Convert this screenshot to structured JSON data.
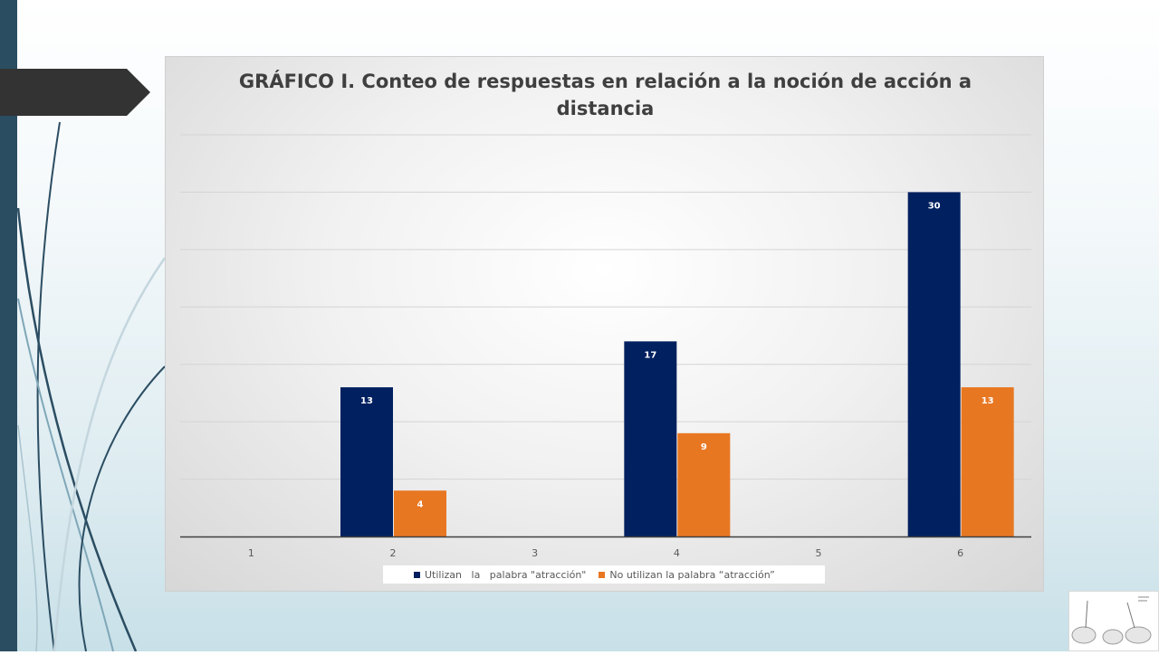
{
  "slide": {
    "accent_color": "#2b4d62",
    "tab_color": "#333333"
  },
  "chart_data": {
    "type": "bar",
    "title": "GRÁFICO I. Conteo de respuestas en relación a la noción de acción a distancia",
    "categories": [
      "1",
      "2",
      "3",
      "4",
      "5",
      "6"
    ],
    "series": [
      {
        "name": "Utilizan   la   palabra \"atracción\"",
        "color": "#002060",
        "values": [
          null,
          13,
          null,
          17,
          null,
          30
        ]
      },
      {
        "name": "No utilizan la palabra “atracción”",
        "color": "#e87722",
        "values": [
          null,
          4,
          null,
          9,
          null,
          13
        ]
      }
    ],
    "ylim": [
      0,
      35
    ],
    "grid": true,
    "data_labels": true,
    "legend": "bottom"
  }
}
